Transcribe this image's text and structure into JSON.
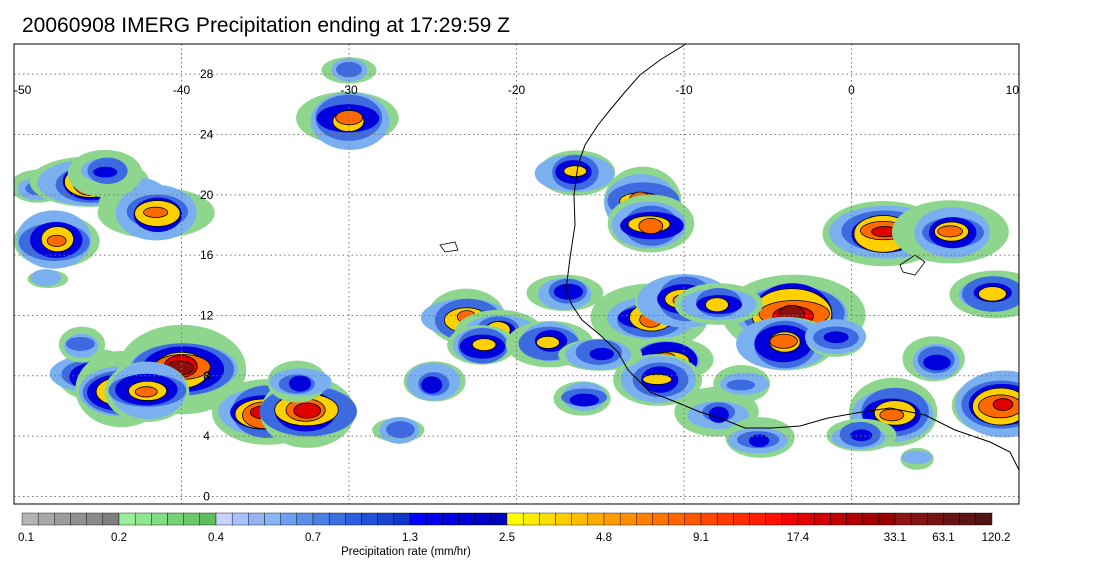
{
  "title": "20060908 IMERG Precipitation ending at 17:29:59 Z",
  "map": {
    "projection": "lat-lon",
    "lon_range": [
      -50,
      10
    ],
    "lat_range": [
      -0.5,
      30
    ],
    "lon_ticks": [
      "-50",
      "-40",
      "-30",
      "-20",
      "-10",
      "0",
      "10"
    ],
    "lat_ticks": [
      "0",
      "4",
      "8",
      "12",
      "16",
      "20",
      "24",
      "28"
    ],
    "grid": "dotted",
    "coastline_color": "#000000"
  },
  "colorbar": {
    "label": "Precipitation rate (mm/hr)",
    "tick_labels": [
      "0.1",
      "0.2",
      "0.4",
      "0.7",
      "1.3",
      "2.5",
      "4.8",
      "9.1",
      "17.4",
      "33.1",
      "63.1",
      "120.2"
    ],
    "bands": [
      [
        "#b4b4b4",
        "#a8a8a8",
        "#9c9c9c",
        "#909090",
        "#8a8a8a",
        "#7e7e7e"
      ],
      [
        "#9af09a",
        "#8ee68e",
        "#82dc82",
        "#76d276",
        "#6ac86a",
        "#5ebe5e"
      ],
      [
        "#c8d2ff",
        "#a8c0ff",
        "#96b4f0",
        "#8ab4f8",
        "#6ea0f0",
        "#5a90ea"
      ],
      [
        "#4a80e6",
        "#3a70e2",
        "#2a60de",
        "#2050d8",
        "#1a44d0",
        "#1038c8"
      ],
      [
        "#0000ff",
        "#0000f0",
        "#0000e0",
        "#0000d6",
        "#0000cc",
        "#0000c0"
      ],
      [
        "#ffff00",
        "#ffec00",
        "#ffdc00",
        "#ffcc00",
        "#ffbc00",
        "#ffac00"
      ],
      [
        "#ff9c00",
        "#ff8e00",
        "#ff8000",
        "#ff7200",
        "#ff6400",
        "#ff5600"
      ],
      [
        "#ff4800",
        "#ff3a00",
        "#ff2c00",
        "#ff1e00",
        "#ff1000",
        "#f00000"
      ],
      [
        "#e00000",
        "#d00000",
        "#c00000",
        "#b00000",
        "#a40000",
        "#980000"
      ],
      [
        "#8c1414",
        "#801414",
        "#741414",
        "#681414",
        "#5c1414",
        "#501414"
      ]
    ]
  },
  "precip_cells": [
    {
      "lon": -48.5,
      "lat": 20.5,
      "level": 2
    },
    {
      "lon": -45.5,
      "lat": 20.8,
      "level": 6
    },
    {
      "lon": -42.5,
      "lat": 19.5,
      "level": 4
    },
    {
      "lon": -41.5,
      "lat": 18.8,
      "level": 5
    },
    {
      "lon": -47.5,
      "lat": 17.0,
      "level": 5
    },
    {
      "lon": -44.5,
      "lat": 21.5,
      "level": 3
    },
    {
      "lon": -45.0,
      "lat": 8.0,
      "level": 5
    },
    {
      "lon": -43.5,
      "lat": 7.0,
      "level": 6
    },
    {
      "lon": -40.0,
      "lat": 8.5,
      "level": 7
    },
    {
      "lon": -42.0,
      "lat": 7.0,
      "level": 5
    },
    {
      "lon": -35.0,
      "lat": 5.5,
      "level": 6
    },
    {
      "lon": -32.5,
      "lat": 5.7,
      "level": 6
    },
    {
      "lon": -30.0,
      "lat": 25.0,
      "level": 5
    },
    {
      "lon": -30.0,
      "lat": 28.2,
      "level": 2
    },
    {
      "lon": -23.0,
      "lat": 11.8,
      "level": 5
    },
    {
      "lon": -21.0,
      "lat": 11.0,
      "level": 4
    },
    {
      "lon": -22.0,
      "lat": 10.0,
      "level": 4
    },
    {
      "lon": -18.0,
      "lat": 10.2,
      "level": 4
    },
    {
      "lon": -17.0,
      "lat": 13.5,
      "level": 3
    },
    {
      "lon": -16.5,
      "lat": 21.5,
      "level": 4
    },
    {
      "lon": -12.5,
      "lat": 19.5,
      "level": 5
    },
    {
      "lon": -12.0,
      "lat": 18.0,
      "level": 5
    },
    {
      "lon": -12.0,
      "lat": 11.8,
      "level": 5
    },
    {
      "lon": -10.0,
      "lat": 13.0,
      "level": 5
    },
    {
      "lon": -11.0,
      "lat": 9.0,
      "level": 5
    },
    {
      "lon": -11.5,
      "lat": 7.8,
      "level": 4
    },
    {
      "lon": -8.0,
      "lat": 5.5,
      "level": 3
    },
    {
      "lon": -5.5,
      "lat": 3.8,
      "level": 3
    },
    {
      "lon": -3.5,
      "lat": 12.0,
      "level": 8
    },
    {
      "lon": -4.0,
      "lat": 10.2,
      "level": 5
    },
    {
      "lon": -1.0,
      "lat": 10.5,
      "level": 3
    },
    {
      "lon": 2.0,
      "lat": 17.5,
      "level": 6
    },
    {
      "lon": 6.0,
      "lat": 17.5,
      "level": 5
    },
    {
      "lon": 2.5,
      "lat": 5.5,
      "level": 5
    },
    {
      "lon": 9.0,
      "lat": 6.0,
      "level": 6
    },
    {
      "lon": 8.5,
      "lat": 13.5,
      "level": 4
    },
    {
      "lon": -27.0,
      "lat": 4.5,
      "level": 2
    },
    {
      "lon": -25.0,
      "lat": 7.5,
      "level": 3
    },
    {
      "lon": -16.0,
      "lat": 6.5,
      "level": 3
    },
    {
      "lon": -6.5,
      "lat": 7.5,
      "level": 2
    },
    {
      "lon": 5.0,
      "lat": 9.0,
      "level": 3
    },
    {
      "lon": -46.0,
      "lat": 10.0,
      "level": 2
    },
    {
      "lon": -48.0,
      "lat": 14.5,
      "level": 1
    },
    {
      "lon": -33.0,
      "lat": 7.5,
      "level": 3
    },
    {
      "lon": -15.0,
      "lat": 9.5,
      "level": 3
    },
    {
      "lon": -8.0,
      "lat": 12.8,
      "level": 4
    },
    {
      "lon": 0.5,
      "lat": 4.0,
      "level": 3
    },
    {
      "lon": 4.0,
      "lat": 2.5,
      "level": 1
    }
  ]
}
